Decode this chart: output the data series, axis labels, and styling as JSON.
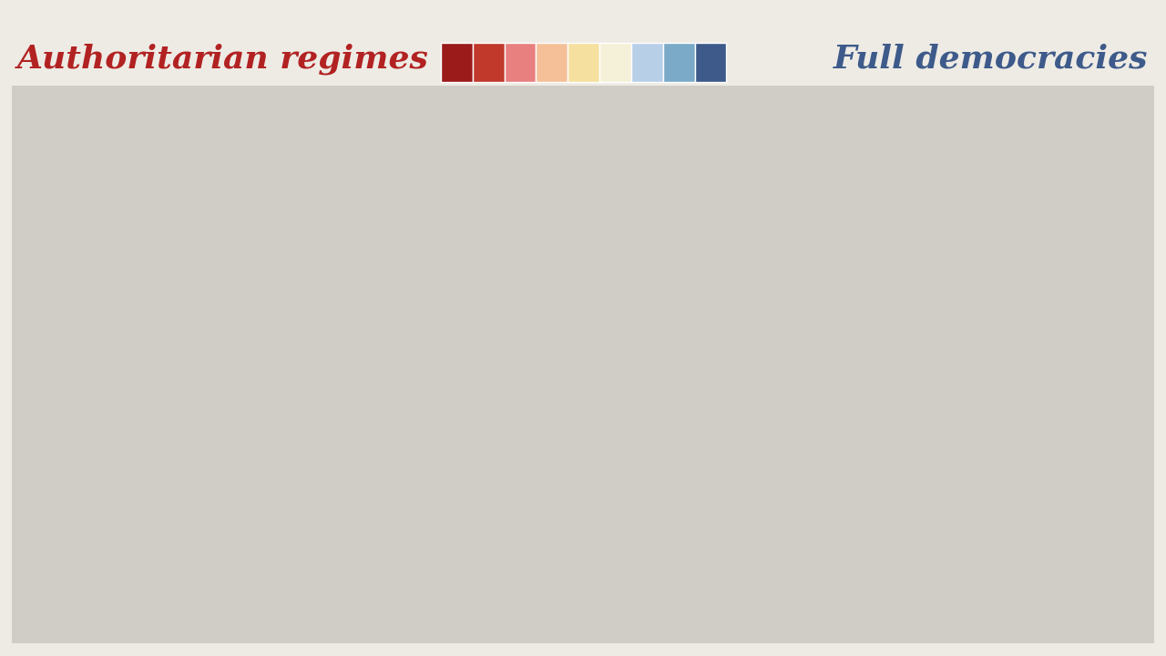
{
  "title_left": "Authoritarian regimes",
  "title_right": "Full democracies",
  "title_left_color": "#b22222",
  "title_right_color": "#3d5a8a",
  "background_color": "#eeebe5",
  "colorbar_colors": [
    "#9b1a1a",
    "#c0392b",
    "#e88080",
    "#f5c098",
    "#f5e0a0",
    "#f5f0d8",
    "#b8cfe8",
    "#7aaac8",
    "#3d5a8a"
  ],
  "country_colors": {
    "Afghanistan": "#9b1a1a",
    "Albania": "#b8cfe8",
    "Algeria": "#c0392b",
    "Angola": "#c0392b",
    "Argentina": "#b8cfe8",
    "Armenia": "#e88080",
    "Australia": "#3d5a8a",
    "Austria": "#3d5a8a",
    "Azerbaijan": "#9b1a1a",
    "Bahrain": "#9b1a1a",
    "Bangladesh": "#e88080",
    "Belarus": "#9b1a1a",
    "Belgium": "#3d5a8a",
    "Benin": "#b8cfe8",
    "Bolivia": "#e88080",
    "Bosnia and Herzegovina": "#e88080",
    "Botswana": "#7aaac8",
    "Brazil": "#b8cfe8",
    "Bulgaria": "#b8cfe8",
    "Burkina Faso": "#e88080",
    "Burundi": "#9b1a1a",
    "Cambodia": "#9b1a1a",
    "Cameroon": "#9b1a1a",
    "Canada": "#3d5a8a",
    "Central African Republic": "#9b1a1a",
    "Chad": "#9b1a1a",
    "Chile": "#7aaac8",
    "China": "#c0392b",
    "Colombia": "#b8cfe8",
    "Democratic Republic of the Congo": "#9b1a1a",
    "Republic of Congo": "#9b1a1a",
    "Costa Rica": "#7aaac8",
    "Ivory Coast": "#e88080",
    "Croatia": "#7aaac8",
    "Cuba": "#9b1a1a",
    "Czech Republic": "#7aaac8",
    "Denmark": "#3d5a8a",
    "Dominican Republic": "#b8cfe8",
    "Ecuador": "#b8cfe8",
    "Egypt": "#9b1a1a",
    "El Salvador": "#b8cfe8",
    "Eritrea": "#9b1a1a",
    "Estonia": "#3d5a8a",
    "Ethiopia": "#9b1a1a",
    "Finland": "#3d5a8a",
    "France": "#7aaac8",
    "Gabon": "#9b1a1a",
    "Germany": "#3d5a8a",
    "Ghana": "#7aaac8",
    "Greece": "#7aaac8",
    "Guatemala": "#e88080",
    "Guinea": "#9b1a1a",
    "Honduras": "#e88080",
    "Hungary": "#e88080",
    "Iceland": "#3d5a8a",
    "India": "#e88080",
    "Indonesia": "#b8cfe8",
    "Iran": "#9b1a1a",
    "Iraq": "#c0392b",
    "Ireland": "#3d5a8a",
    "Israel": "#7aaac8",
    "Italy": "#7aaac8",
    "Jamaica": "#7aaac8",
    "Japan": "#7aaac8",
    "Jordan": "#c0392b",
    "Kazakhstan": "#9b1a1a",
    "Kenya": "#b8cfe8",
    "Kuwait": "#9b1a1a",
    "Kyrgyzstan": "#c0392b",
    "Laos": "#9b1a1a",
    "Latvia": "#7aaac8",
    "Lebanon": "#e88080",
    "Libya": "#9b1a1a",
    "Lithuania": "#7aaac8",
    "Luxembourg": "#3d5a8a",
    "North Macedonia": "#b8cfe8",
    "Madagascar": "#e88080",
    "Malawi": "#b8cfe8",
    "Malaysia": "#e88080",
    "Mali": "#e88080",
    "Mauritania": "#9b1a1a",
    "Mexico": "#b8cfe8",
    "Moldova": "#b8cfe8",
    "Mongolia": "#b8cfe8",
    "Morocco": "#c0392b",
    "Mozambique": "#b8cfe8",
    "Myanmar": "#9b1a1a",
    "Namibia": "#7aaac8",
    "Nepal": "#b8cfe8",
    "Netherlands": "#3d5a8a",
    "New Zealand": "#3d5a8a",
    "Nicaragua": "#c0392b",
    "Niger": "#e88080",
    "Nigeria": "#e88080",
    "North Korea": "#9b1a1a",
    "Norway": "#3d5a8a",
    "Oman": "#9b1a1a",
    "Pakistan": "#c0392b",
    "Panama": "#7aaac8",
    "Papua New Guinea": "#b8cfe8",
    "Paraguay": "#b8cfe8",
    "Peru": "#b8cfe8",
    "Philippines": "#e88080",
    "Poland": "#7aaac8",
    "Portugal": "#7aaac8",
    "Qatar": "#9b1a1a",
    "Romania": "#b8cfe8",
    "Russia": "#c0392b",
    "Rwanda": "#9b1a1a",
    "Saudi Arabia": "#9b1a1a",
    "Senegal": "#b8cfe8",
    "Sierra Leone": "#b8cfe8",
    "Slovakia": "#7aaac8",
    "Slovenia": "#7aaac8",
    "Somalia": "#9b1a1a",
    "South Africa": "#7aaac8",
    "South Korea": "#7aaac8",
    "South Sudan": "#9b1a1a",
    "Spain": "#7aaac8",
    "Sri Lanka": "#e88080",
    "Sudan": "#9b1a1a",
    "Sweden": "#3d5a8a",
    "Switzerland": "#3d5a8a",
    "Syria": "#9b1a1a",
    "Taiwan": "#7aaac8",
    "Tajikistan": "#9b1a1a",
    "Tanzania": "#e88080",
    "Thailand": "#e88080",
    "Togo": "#c0392b",
    "Trinidad and Tobago": "#7aaac8",
    "Tunisia": "#e88080",
    "Turkey": "#e88080",
    "Turkmenistan": "#9b1a1a",
    "Uganda": "#c0392b",
    "Ukraine": "#b8cfe8",
    "United Arab Emirates": "#9b1a1a",
    "United Kingdom": "#7aaac8",
    "United States of America": "#7aaac8",
    "Uruguay": "#7aaac8",
    "Uzbekistan": "#9b1a1a",
    "Venezuela": "#c0392b",
    "Vietnam": "#9b1a1a",
    "Yemen": "#9b1a1a",
    "Zambia": "#b8cfe8",
    "Zimbabwe": "#c0392b",
    "Greenland": "#d8d4ce",
    "Antarctica": "#d8d4ce"
  },
  "default_color": "#d0ccc6",
  "ocean_color": "#eeebe5",
  "border_color": "#ffffff",
  "border_linewidth": 0.5,
  "xlim": [
    -180,
    180
  ],
  "ylim": [
    -60,
    85
  ]
}
